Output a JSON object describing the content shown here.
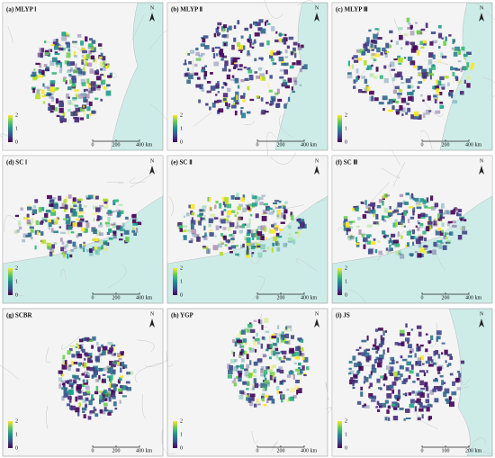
{
  "panels": [
    {
      "label": "(a) MLYP Ⅰ",
      "north": "N",
      "legend_ticks": [
        "0",
        "1",
        "2"
      ],
      "scale": [
        "0",
        "200",
        "400 km"
      ]
    },
    {
      "label": "(b) MLYP Ⅱ",
      "north": "N",
      "legend_ticks": [
        "0",
        "1",
        "2"
      ],
      "scale": [
        "0",
        "200",
        "400 km"
      ]
    },
    {
      "label": "(c) MLYP Ⅲ",
      "north": "N",
      "legend_ticks": [
        "0",
        "1",
        "2"
      ],
      "scale": [
        "0",
        "200",
        "400 km"
      ]
    },
    {
      "label": "(d) SC Ⅰ",
      "north": "N",
      "legend_ticks": [
        "0",
        "1",
        "2"
      ],
      "scale": [
        "0",
        "200",
        "400 km"
      ]
    },
    {
      "label": "(e) SC Ⅱ",
      "north": "N",
      "legend_ticks": [
        "0",
        "1",
        "2"
      ],
      "scale": [
        "0",
        "200",
        "400 km"
      ]
    },
    {
      "label": "(f) SC Ⅲ",
      "north": "N",
      "legend_ticks": [
        "0",
        "1",
        "2"
      ],
      "scale": [
        "0",
        "200",
        "400 km"
      ]
    },
    {
      "label": "(g) SCBR",
      "north": "N",
      "legend_ticks": [
        "0",
        "1",
        "2"
      ],
      "scale": [
        "0",
        "200",
        "400 km"
      ]
    },
    {
      "label": "(h) YGP",
      "north": "N",
      "legend_ticks": [
        "0",
        "1",
        "2"
      ],
      "scale": [
        "0",
        "200",
        "400 km"
      ]
    },
    {
      "label": "(i) JS",
      "north": "N",
      "legend_ticks": [
        "0",
        "1",
        "2"
      ],
      "scale": [
        "0",
        "100",
        "200 km"
      ]
    }
  ]
}
